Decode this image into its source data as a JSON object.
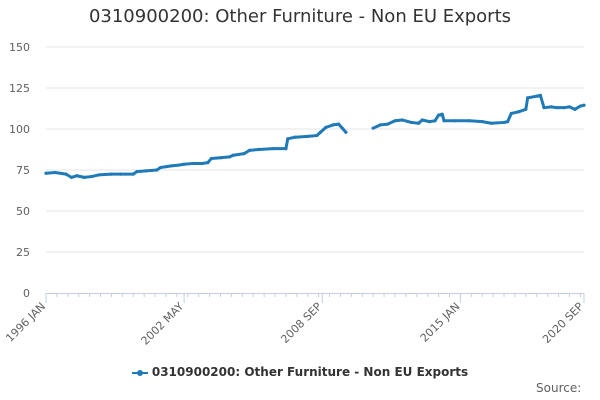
{
  "chart_data": {
    "type": "line",
    "title": "0310900200: Other Furniture - Non EU Exports",
    "xlabel": "",
    "ylabel": "",
    "ylim": [
      0,
      150
    ],
    "yticks": [
      0,
      25,
      50,
      75,
      100,
      125,
      150
    ],
    "xlim": [
      "1996-01",
      "2020-09"
    ],
    "xticks": [
      {
        "label": "1996 JAN",
        "date": "1996-01"
      },
      {
        "label": "2002 MAY",
        "date": "2002-05"
      },
      {
        "label": "2008 SEP",
        "date": "2008-09"
      },
      {
        "label": "2015 JAN",
        "date": "2015-01"
      },
      {
        "label": "2020 SEP",
        "date": "2020-09"
      }
    ],
    "grid": true,
    "legend_position": "bottom-center",
    "color": "#1f7ab8",
    "series": [
      {
        "name": "0310900200: Other Furniture - Non EU Exports",
        "segments": [
          [
            [
              "1996-01",
              73
            ],
            [
              "1996-06",
              73.5
            ],
            [
              "1996-12",
              72.5
            ],
            [
              "1997-03",
              70.5
            ],
            [
              "1997-06",
              71.5
            ],
            [
              "1997-10",
              70.5
            ],
            [
              "1998-02",
              71
            ],
            [
              "1998-06",
              72
            ],
            [
              "1999-01",
              72.5
            ],
            [
              "1999-06",
              72.5
            ],
            [
              "2000-01",
              72.5
            ],
            [
              "2000-03",
              74
            ],
            [
              "2000-08",
              74.5
            ],
            [
              "2001-02",
              75
            ],
            [
              "2001-04",
              76.5
            ],
            [
              "2001-10",
              77.5
            ],
            [
              "2002-02",
              78
            ],
            [
              "2002-05",
              78.5
            ],
            [
              "2002-10",
              79
            ],
            [
              "2003-03",
              79
            ],
            [
              "2003-06",
              79.5
            ],
            [
              "2003-08",
              82
            ],
            [
              "2004-01",
              82.5
            ],
            [
              "2004-06",
              83
            ],
            [
              "2004-08",
              84
            ],
            [
              "2005-02",
              85
            ],
            [
              "2005-05",
              87
            ],
            [
              "2005-10",
              87.5
            ],
            [
              "2006-06",
              88
            ],
            [
              "2007-01",
              88
            ],
            [
              "2007-02",
              94
            ],
            [
              "2007-06",
              95
            ],
            [
              "2008-01",
              95.5
            ],
            [
              "2008-06",
              96
            ],
            [
              "2008-08",
              98
            ],
            [
              "2008-11",
              101
            ],
            [
              "2009-03",
              102.5
            ],
            [
              "2009-06",
              103
            ],
            [
              "2009-08",
              100.5
            ],
            [
              "2009-10",
              98
            ]
          ],
          [
            [
              "2011-01",
              100.5
            ],
            [
              "2011-05",
              102.5
            ],
            [
              "2011-09",
              103
            ],
            [
              "2012-01",
              105
            ],
            [
              "2012-05",
              105.5
            ],
            [
              "2012-10",
              104
            ],
            [
              "2013-02",
              103.5
            ],
            [
              "2013-04",
              105.5
            ],
            [
              "2013-08",
              104.5
            ],
            [
              "2013-11",
              105
            ],
            [
              "2014-01",
              108.5
            ],
            [
              "2014-03",
              109
            ],
            [
              "2014-04",
              105
            ],
            [
              "2014-10",
              105
            ],
            [
              "2015-06",
              105
            ],
            [
              "2016-01",
              104.5
            ],
            [
              "2016-06",
              103.5
            ],
            [
              "2017-01",
              104
            ],
            [
              "2017-03",
              104.5
            ],
            [
              "2017-05",
              109.5
            ],
            [
              "2017-09",
              110.5
            ],
            [
              "2018-01",
              112
            ],
            [
              "2018-02",
              119
            ],
            [
              "2018-07",
              120
            ],
            [
              "2018-09",
              120.5
            ],
            [
              "2018-11",
              113
            ],
            [
              "2019-03",
              113.5
            ],
            [
              "2019-06",
              113
            ],
            [
              "2019-10",
              113
            ],
            [
              "2020-01",
              113.5
            ],
            [
              "2020-04",
              112
            ],
            [
              "2020-07",
              114
            ],
            [
              "2020-09",
              114.5
            ]
          ]
        ]
      }
    ],
    "legend_label": "0310900200: Other Furniture - Non EU Exports",
    "source_label": "Source:"
  }
}
